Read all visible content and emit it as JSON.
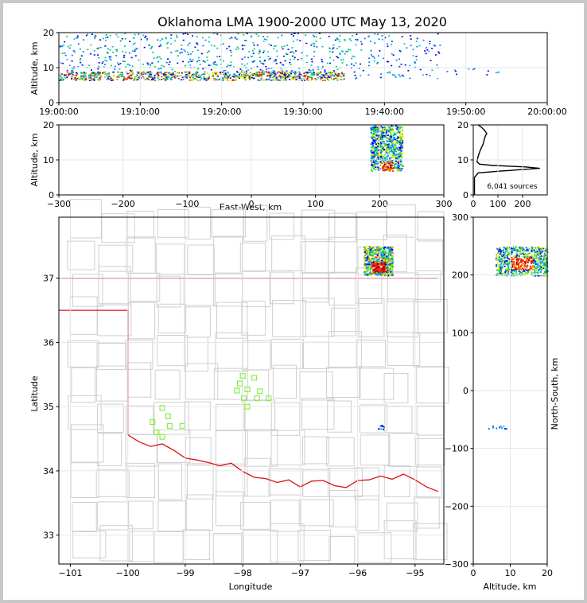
{
  "title": "Oklahoma LMA 1900-2000 UTC May 13, 2020",
  "sources_label": "6,041 sources",
  "colors": {
    "grid": "#e6e6e6",
    "state_border": "#dd1111",
    "county_lines": "#cfcfcf",
    "station_marker": "#88ee44",
    "rainbow": [
      "#0000ee",
      "#0077ff",
      "#00bbcc",
      "#00cc66",
      "#77dd00",
      "#eeee00",
      "#ff9900",
      "#ff2200",
      "#990000"
    ]
  },
  "chart_data": [
    {
      "id": "time_altitude",
      "type": "heatmap",
      "ylabel": "Altitude, km",
      "xlim": [
        "19:00:00",
        "20:00:00"
      ],
      "xticks": [
        "19:00:00",
        "19:10:00",
        "19:20:00",
        "19:30:00",
        "19:40:00",
        "19:50:00",
        "20:00:00"
      ],
      "ylim": [
        0,
        20
      ],
      "yticks": [
        0,
        10,
        20
      ],
      "grid": true,
      "clusters": [
        {
          "t_start_min": 0,
          "t_end_min": 35,
          "alt_min_km": 6.5,
          "alt_max_km": 9,
          "density": "high"
        },
        {
          "t_start_min": 0,
          "t_end_min": 36,
          "alt_min_km": 9,
          "alt_max_km": 20,
          "density": "medium"
        },
        {
          "t_start_min": 36,
          "t_end_min": 47,
          "alt_min_km": 7,
          "alt_max_km": 20,
          "density": "low"
        },
        {
          "t_start_min": 47,
          "t_end_min": 54,
          "alt_min_km": 8,
          "alt_max_km": 10,
          "density": "sparse"
        }
      ]
    },
    {
      "id": "ew_altitude",
      "type": "heatmap",
      "xlabel": "East-West, km",
      "ylabel": "Altitude, km",
      "xlim": [
        -300,
        300
      ],
      "xticks": [
        -300,
        -200,
        -100,
        0,
        100,
        200,
        300
      ],
      "ylim": [
        0,
        20
      ],
      "yticks": [
        0,
        10,
        20
      ],
      "grid": true,
      "clusters": [
        {
          "x_min_km": 185,
          "x_max_km": 235,
          "alt_min_km": 7,
          "alt_max_km": 20,
          "density": "high"
        }
      ]
    },
    {
      "id": "altitude_histogram",
      "type": "line",
      "xlim": [
        0,
        300
      ],
      "xticks": [
        0,
        100,
        200
      ],
      "ylim": [
        0,
        20
      ],
      "yticks": [
        0,
        10,
        20
      ],
      "grid": true,
      "points": [
        [
          5,
          0
        ],
        [
          5,
          5
        ],
        [
          20,
          6.3
        ],
        [
          110,
          6.8
        ],
        [
          190,
          7.2
        ],
        [
          270,
          7.6
        ],
        [
          210,
          8.0
        ],
        [
          80,
          8.4
        ],
        [
          25,
          8.8
        ],
        [
          15,
          9.5
        ],
        [
          18,
          10.5
        ],
        [
          22,
          11.5
        ],
        [
          30,
          13
        ],
        [
          40,
          14.5
        ],
        [
          45,
          16
        ],
        [
          50,
          17
        ],
        [
          55,
          17.5
        ],
        [
          45,
          18.5
        ],
        [
          35,
          19.2
        ],
        [
          20,
          20
        ]
      ]
    },
    {
      "id": "plan_view",
      "type": "scatter",
      "xlabel": "Longitude",
      "ylabel": "Latitude",
      "xlim": [
        -101.2,
        -94.5
      ],
      "xticks": [
        -101,
        -100,
        -99,
        -98,
        -97,
        -96,
        -95
      ],
      "ylim": [
        32.55,
        37.95
      ],
      "yticks": [
        33,
        34,
        35,
        36,
        37
      ],
      "grid": true,
      "stations": [
        [
          -98.0,
          35.48
        ],
        [
          -98.05,
          35.36
        ],
        [
          -98.1,
          35.25
        ],
        [
          -97.92,
          35.27
        ],
        [
          -97.8,
          35.45
        ],
        [
          -97.98,
          35.13
        ],
        [
          -97.92,
          35.0
        ],
        [
          -97.75,
          35.13
        ],
        [
          -97.7,
          35.24
        ],
        [
          -97.55,
          35.13
        ],
        [
          -99.4,
          34.98
        ],
        [
          -99.3,
          34.85
        ],
        [
          -99.57,
          34.76
        ],
        [
          -99.27,
          34.7
        ],
        [
          -99.05,
          34.7
        ],
        [
          -99.5,
          34.6
        ],
        [
          -99.4,
          34.53
        ]
      ],
      "clusters": [
        {
          "lon_min": -95.9,
          "lon_max": -95.4,
          "lat_min": 37.05,
          "lat_max": 37.5,
          "density": "high"
        },
        {
          "lon_min": -95.65,
          "lon_max": -95.55,
          "lat_min": 34.65,
          "lat_max": 34.72,
          "density": "sparse"
        }
      ]
    },
    {
      "id": "altitude_ns",
      "type": "heatmap",
      "xlabel": "Altitude, km",
      "ylabel": "North-South, km",
      "xlim": [
        0,
        20
      ],
      "xticks": [
        0,
        10,
        20
      ],
      "ylim": [
        -300,
        300
      ],
      "yticks": [
        -300,
        -200,
        -100,
        0,
        100,
        200,
        300
      ],
      "grid": true,
      "clusters": [
        {
          "alt_min_km": 6,
          "alt_max_km": 20,
          "ns_min_km": 200,
          "ns_max_km": 250,
          "density": "high"
        },
        {
          "alt_min_km": 4,
          "alt_max_km": 10,
          "ns_min_km": -65,
          "ns_max_km": -60,
          "density": "sparse"
        }
      ]
    }
  ]
}
